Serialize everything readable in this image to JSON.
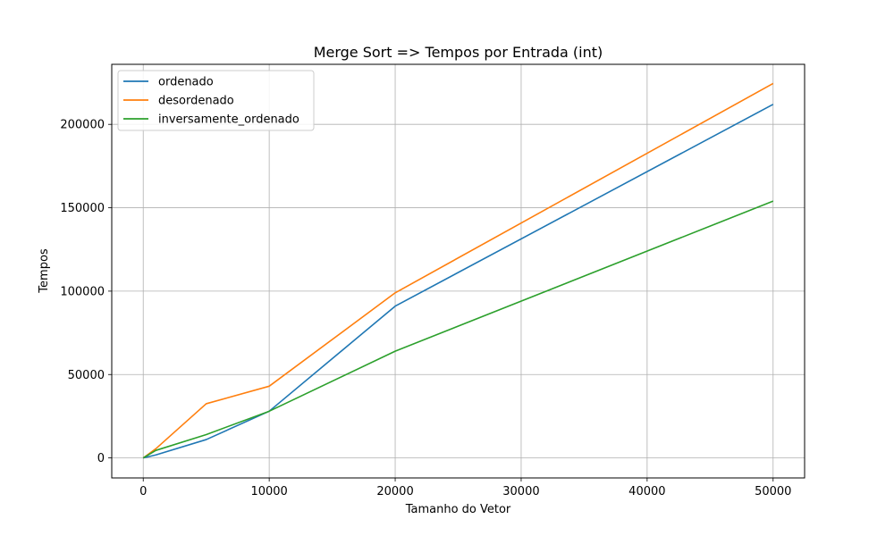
{
  "chart_data": {
    "type": "line",
    "title": "Merge Sort => Tempos por Entrada (int)",
    "xlabel": "Tamanho do Vetor",
    "ylabel": "Tempos",
    "xlim": [
      -2500,
      52500
    ],
    "ylim": [
      -12000,
      236000
    ],
    "xticks": [
      0,
      10000,
      20000,
      30000,
      40000,
      50000
    ],
    "xtick_labels": [
      "0",
      "10000",
      "20000",
      "30000",
      "40000",
      "50000"
    ],
    "yticks": [
      0,
      50000,
      100000,
      150000,
      200000
    ],
    "ytick_labels": [
      "0",
      "50000",
      "100000",
      "150000",
      "200000"
    ],
    "grid": true,
    "legend_position": "top-left",
    "series": [
      {
        "name": "ordenado",
        "color": "#1f77b4",
        "x": [
          0,
          1000,
          5000,
          10000,
          20000,
          50000
        ],
        "y": [
          0,
          1800,
          11000,
          28000,
          91000,
          212000
        ]
      },
      {
        "name": "desordenado",
        "color": "#ff7f0e",
        "x": [
          0,
          1000,
          5000,
          10000,
          20000,
          50000
        ],
        "y": [
          0,
          5500,
          32500,
          43000,
          99000,
          224500
        ]
      },
      {
        "name": "inversamente_ordenado",
        "color": "#2ca02c",
        "x": [
          0,
          1000,
          5000,
          10000,
          20000,
          50000
        ],
        "y": [
          0,
          4500,
          14000,
          28000,
          64000,
          154000
        ]
      }
    ]
  }
}
